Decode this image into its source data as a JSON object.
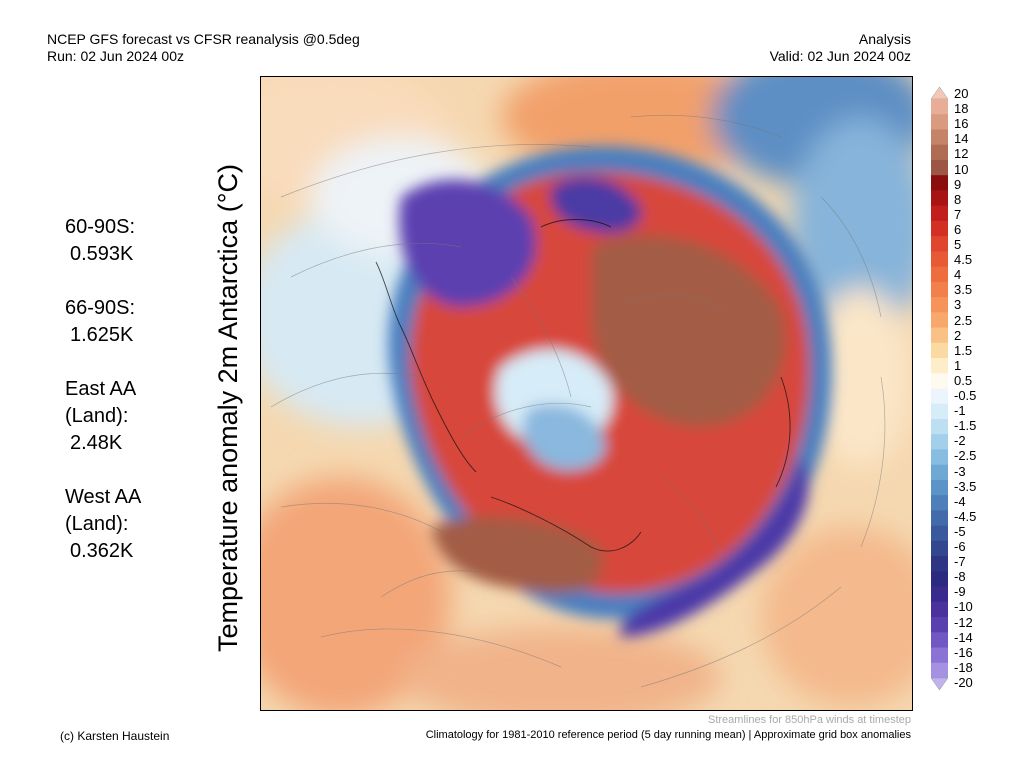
{
  "header": {
    "title_line1": "NCEP GFS forecast vs CFSR reanalysis @0.5deg",
    "title_line2": "Run: 02 Jun 2024 00z",
    "right_line1": "Analysis",
    "right_line2": "Valid: 02 Jun 2024 00z"
  },
  "stats": [
    {
      "label": "60-90S:",
      "value": "0.593K"
    },
    {
      "label": "66-90S:",
      "value": "1.625K"
    },
    {
      "label": "East AA (Land):",
      "value": "2.48K"
    },
    {
      "label": "West AA (Land):",
      "value": "0.362K"
    }
  ],
  "ylabel": "Temperature anomaly 2m Antarctica (°C)",
  "colorbar": {
    "labels": [
      "20",
      "18",
      "16",
      "14",
      "12",
      "10",
      "9",
      "8",
      "7",
      "6",
      "5",
      "4.5",
      "4",
      "3.5",
      "3",
      "2.5",
      "2",
      "1.5",
      "1",
      "0.5",
      "-0.5",
      "-1",
      "-1.5",
      "-2",
      "-2.5",
      "-3",
      "-3.5",
      "-4",
      "-4.5",
      "-5",
      "-6",
      "-7",
      "-8",
      "-9",
      "-10",
      "-12",
      "-14",
      "-16",
      "-18",
      "-20"
    ],
    "colors": [
      "#f4c8b8",
      "#e8ad97",
      "#d99a80",
      "#c58468",
      "#b06c52",
      "#9b5644",
      "#8b0e0e",
      "#a81414",
      "#c21e1e",
      "#d42f25",
      "#e0452d",
      "#e85a35",
      "#ee6d3e",
      "#f2804a",
      "#f5935a",
      "#f7a96d",
      "#f9c186",
      "#fbd9a3",
      "#fdeec9",
      "#fffaf0",
      "#ecf5fb",
      "#d6ecf8",
      "#bddff2",
      "#a2cfea",
      "#86bde0",
      "#6ea9d4",
      "#5b94c7",
      "#4d7fba",
      "#426bac",
      "#3a589e",
      "#334690",
      "#2e3684",
      "#2c2a80",
      "#3a2a8e",
      "#4a319e",
      "#5a3fb0",
      "#7057c4",
      "#8a73d4",
      "#a491e2",
      "#bfb2ef"
    ]
  },
  "footer": {
    "stream_note": "Streamlines for 850hPa winds at timestep",
    "credit": "(c) Karsten Haustein",
    "clim_note": "Climatology for 1981-2010 reference period (5 day running mean) | Approximate grid box anomalies"
  }
}
